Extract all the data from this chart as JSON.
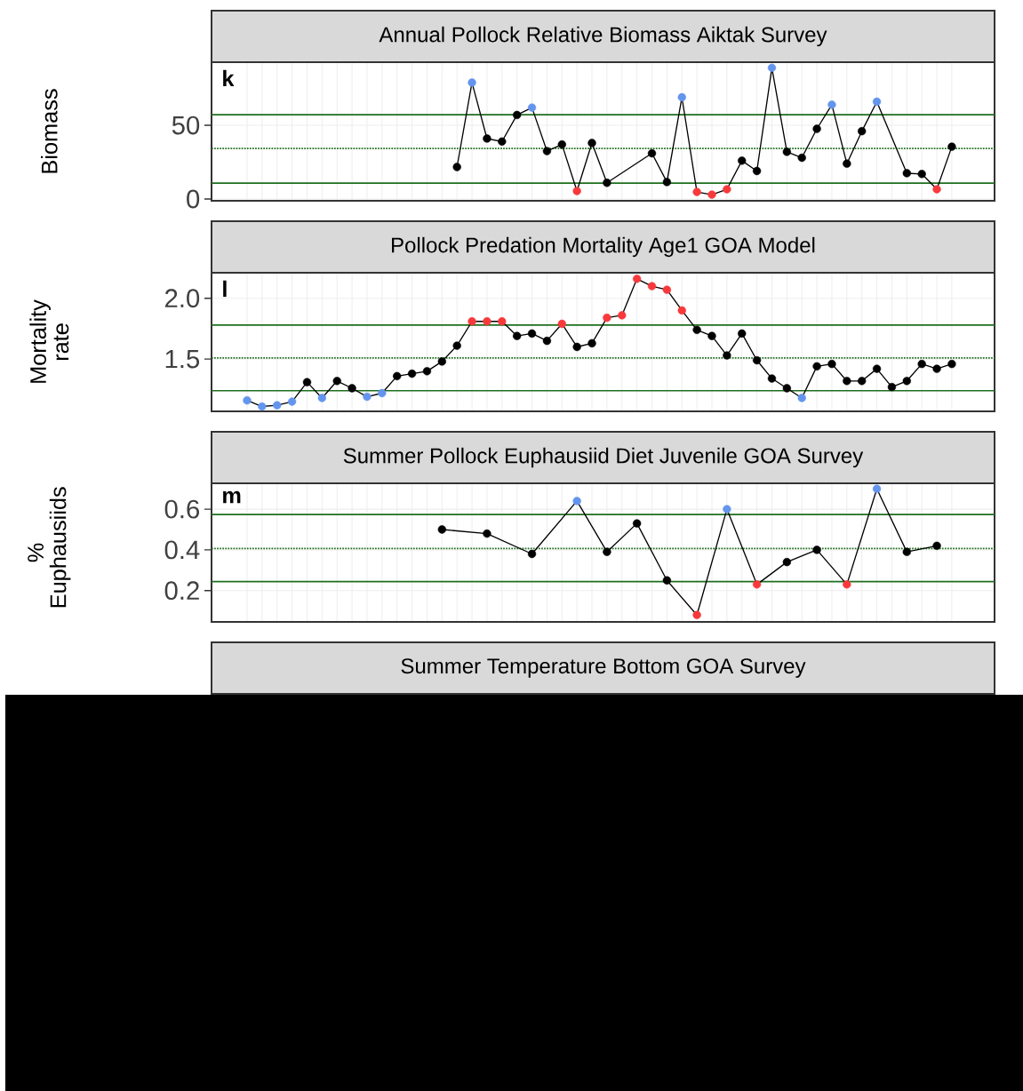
{
  "chart_data": [
    {
      "type": "line",
      "title": "Annual Pollock Relative Biomass Aiktak Survey",
      "ylabel": "Biomass",
      "annotations": [
        "k"
      ],
      "grid": true,
      "marker": "circle",
      "line_style": "solid",
      "tick_labels": "y",
      "categories": [
        null,
        null,
        null,
        null,
        null,
        null,
        null,
        null,
        null,
        null,
        null,
        null,
        null,
        null,
        null,
        null,
        null,
        null,
        null,
        null,
        null,
        null,
        null,
        null,
        null,
        null,
        null,
        null,
        null,
        null,
        null,
        null,
        null,
        null,
        null,
        null,
        null,
        null,
        null,
        null,
        null,
        null,
        null,
        null,
        null,
        null,
        null,
        null
      ],
      "ylim": [
        -1.2,
        92.8
      ],
      "yticks": [
        0,
        50
      ],
      "ref_lines": [
        {
          "axis": "y",
          "value": 57.2,
          "color": "#1e6e1e",
          "line_style": "solid"
        },
        {
          "axis": "y",
          "value": 34.3,
          "color": "#1e6e1e",
          "line_style": "dotted"
        },
        {
          "axis": "y",
          "value": 10.8,
          "color": "#1e6e1e",
          "line_style": "solid"
        }
      ],
      "series": [
        {
          "color": "#000000",
          "values": [
            null,
            null,
            null,
            null,
            null,
            null,
            null,
            null,
            null,
            null,
            null,
            null,
            null,
            null,
            21.7,
            79,
            41,
            39,
            57,
            62,
            32.5,
            37,
            5.4,
            38,
            11,
            null,
            null,
            31,
            11.5,
            69,
            4.8,
            3,
            6.6,
            26,
            19,
            89,
            32,
            28,
            47.6,
            64,
            24,
            46,
            66,
            null,
            17.5,
            17,
            6.6,
            35.5
          ],
          "colors": [
            null,
            null,
            null,
            null,
            null,
            null,
            null,
            null,
            null,
            null,
            null,
            null,
            null,
            null,
            "#000000",
            "#6495ed",
            "#000000",
            "#000000",
            "#000000",
            "#6495ed",
            "#000000",
            "#000000",
            "#f8393b",
            "#000000",
            "#000000",
            null,
            null,
            "#000000",
            "#000000",
            "#6495ed",
            "#f8393b",
            "#f8393b",
            "#f8393b",
            "#000000",
            "#000000",
            "#6495ed",
            "#000000",
            "#000000",
            "#000000",
            "#6495ed",
            "#000000",
            "#000000",
            "#6495ed",
            null,
            "#000000",
            "#000000",
            "#f8393b",
            "#000000"
          ]
        }
      ]
    },
    {
      "type": "line",
      "title": "Pollock Predation Mortality Age1 GOA Model",
      "ylabel": "Mortality rate",
      "annotations": [
        "l"
      ],
      "grid": true,
      "marker": "circle",
      "line_style": "solid",
      "tick_labels": "y",
      "categories": [
        null,
        null,
        null,
        null,
        null,
        null,
        null,
        null,
        null,
        null,
        null,
        null,
        null,
        null,
        null,
        null,
        null,
        null,
        null,
        null,
        null,
        null,
        null,
        null,
        null,
        null,
        null,
        null,
        null,
        null,
        null,
        null,
        null,
        null,
        null,
        null,
        null,
        null,
        null,
        null,
        null,
        null,
        null,
        null,
        null,
        null,
        null,
        null
      ],
      "ylim": [
        1.07,
        2.21
      ],
      "yticks": [
        {
          "value": 1.5,
          "label": "1.5"
        },
        {
          "value": 2.0,
          "label": "2.0"
        }
      ],
      "ref_lines": [
        {
          "axis": "y",
          "value": 1.78,
          "color": "#1e6e1e",
          "line_style": "solid"
        },
        {
          "axis": "y",
          "value": 1.51,
          "color": "#1e6e1e",
          "line_style": "dotted"
        },
        {
          "axis": "y",
          "value": 1.24,
          "color": "#1e6e1e",
          "line_style": "solid"
        }
      ],
      "series": [
        {
          "color": "#000000",
          "values": [
            1.16,
            1.11,
            1.12,
            1.15,
            1.31,
            1.18,
            1.32,
            1.26,
            1.19,
            1.22,
            1.36,
            1.38,
            1.4,
            1.48,
            1.61,
            1.81,
            1.81,
            1.81,
            1.69,
            1.71,
            1.65,
            1.79,
            1.6,
            1.63,
            1.84,
            1.86,
            2.16,
            2.1,
            2.07,
            1.9,
            1.74,
            1.69,
            1.53,
            1.71,
            1.49,
            1.34,
            1.26,
            1.18,
            1.44,
            1.46,
            1.32,
            1.32,
            1.42,
            1.27,
            1.32,
            1.46,
            1.42,
            1.46
          ],
          "colors": [
            "#6495ed",
            "#6495ed",
            "#6495ed",
            "#6495ed",
            "#000000",
            "#6495ed",
            "#000000",
            "#000000",
            "#6495ed",
            "#6495ed",
            "#000000",
            "#000000",
            "#000000",
            "#000000",
            "#000000",
            "#f8393b",
            "#f8393b",
            "#f8393b",
            "#000000",
            "#000000",
            "#000000",
            "#f8393b",
            "#000000",
            "#000000",
            "#f8393b",
            "#f8393b",
            "#f8393b",
            "#f8393b",
            "#f8393b",
            "#f8393b",
            "#000000",
            "#000000",
            "#000000",
            "#000000",
            "#000000",
            "#000000",
            "#000000",
            "#6495ed",
            "#000000",
            "#000000",
            "#000000",
            "#000000",
            "#000000",
            "#000000",
            "#000000",
            "#000000",
            "#000000",
            "#000000"
          ]
        }
      ]
    },
    {
      "type": "line",
      "title": "Summer Pollock Euphausiid Diet Juvenile GOA Survey",
      "ylabel": "% Euphausiids",
      "annotations": [
        "m"
      ],
      "grid": true,
      "marker": "circle",
      "line_style": "solid",
      "tick_labels": "y",
      "categories": [
        null,
        null,
        null,
        null,
        null,
        null,
        null,
        null,
        null,
        null,
        null,
        null,
        null,
        null,
        null,
        null,
        null,
        null,
        null,
        null,
        null,
        null,
        null,
        null,
        null,
        null,
        null,
        null,
        null,
        null,
        null,
        null,
        null,
        null,
        null,
        null,
        null,
        null,
        null,
        null,
        null,
        null,
        null,
        null,
        null,
        null,
        null,
        null
      ],
      "ylim": [
        0.046,
        0.727
      ],
      "yticks": [
        0.2,
        0.4,
        0.6
      ],
      "ref_lines": [
        {
          "axis": "y",
          "value": 0.574,
          "color": "#1e6e1e",
          "line_style": "solid"
        },
        {
          "axis": "y",
          "value": 0.407,
          "color": "#1e6e1e",
          "line_style": "dotted"
        },
        {
          "axis": "y",
          "value": 0.244,
          "color": "#1e6e1e",
          "line_style": "solid"
        }
      ],
      "series": [
        {
          "color": "#000000",
          "values": [
            null,
            null,
            null,
            null,
            null,
            null,
            null,
            null,
            null,
            null,
            null,
            null,
            null,
            0.5,
            null,
            null,
            0.48,
            null,
            null,
            0.38,
            null,
            null,
            0.64,
            null,
            0.39,
            null,
            0.53,
            null,
            0.25,
            null,
            0.08,
            null,
            0.6,
            null,
            0.23,
            null,
            0.34,
            null,
            0.4,
            null,
            0.23,
            null,
            0.7,
            null,
            0.39,
            null,
            0.42,
            null
          ],
          "colors": [
            null,
            null,
            null,
            null,
            null,
            null,
            null,
            null,
            null,
            null,
            null,
            null,
            null,
            "#000000",
            null,
            null,
            "#000000",
            null,
            null,
            "#000000",
            null,
            null,
            "#6495ed",
            null,
            "#000000",
            null,
            "#000000",
            null,
            "#000000",
            null,
            "#f8393b",
            null,
            "#6495ed",
            null,
            "#f8393b",
            null,
            "#000000",
            null,
            "#000000",
            null,
            "#f8393b",
            null,
            "#6495ed",
            null,
            "#000000",
            null,
            "#000000",
            null
          ]
        }
      ]
    },
    {
      "type": "other",
      "title": "Summer Temperature Bottom GOA Survey"
    }
  ]
}
